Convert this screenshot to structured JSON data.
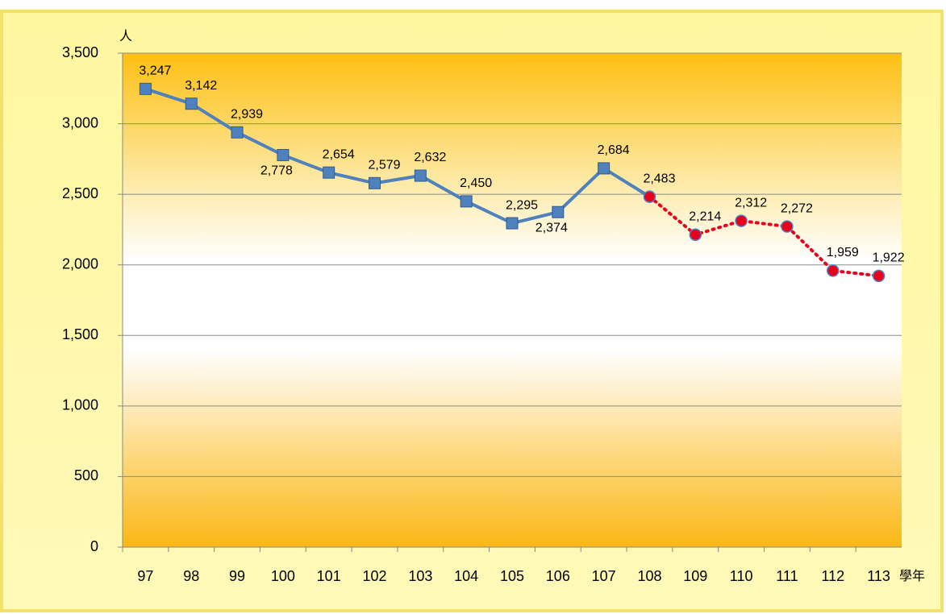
{
  "chart_data": {
    "type": "line",
    "y_unit": "人",
    "x_unit": "學年",
    "categories": [
      "97",
      "98",
      "99",
      "100",
      "101",
      "102",
      "103",
      "104",
      "105",
      "106",
      "107",
      "108",
      "109",
      "110",
      "111",
      "112",
      "113"
    ],
    "series": [
      {
        "color": "#4f81bd",
        "values": [
          3247,
          3142,
          2939,
          2778,
          2654,
          2579,
          2632,
          2450,
          2295,
          2374,
          2684,
          2483,
          null,
          null,
          null,
          null,
          null
        ],
        "value_labels": [
          "3,247",
          "3,142",
          "2,939",
          "2,778",
          "2,654",
          "2,579",
          "2,632",
          "2,450",
          "2,295",
          "2,374",
          "2,684",
          "2,483",
          null,
          null,
          null,
          null,
          null
        ]
      },
      {
        "color": "#e8001c",
        "dashed": true,
        "values": [
          null,
          null,
          null,
          null,
          null,
          null,
          null,
          null,
          null,
          null,
          null,
          2483,
          2214,
          2312,
          2272,
          1959,
          1922
        ],
        "value_labels": [
          null,
          null,
          null,
          null,
          null,
          null,
          null,
          null,
          null,
          null,
          null,
          "2,483",
          "2,214",
          "2,312",
          "2,272",
          "1,959",
          "1,922"
        ]
      }
    ],
    "ylim": [
      0,
      3500
    ],
    "yticks": [
      0,
      {
        "value": 500,
        "label": "500"
      },
      {
        "value": 1000,
        "label": "1,000"
      },
      {
        "value": 1500,
        "label": "1,500"
      },
      {
        "value": 2000,
        "label": "2,000"
      },
      {
        "value": 2500,
        "label": "2,500"
      },
      {
        "value": 3000,
        "label": "3,000"
      },
      {
        "value": 3500,
        "label": "3,500"
      }
    ],
    "grid": true
  }
}
